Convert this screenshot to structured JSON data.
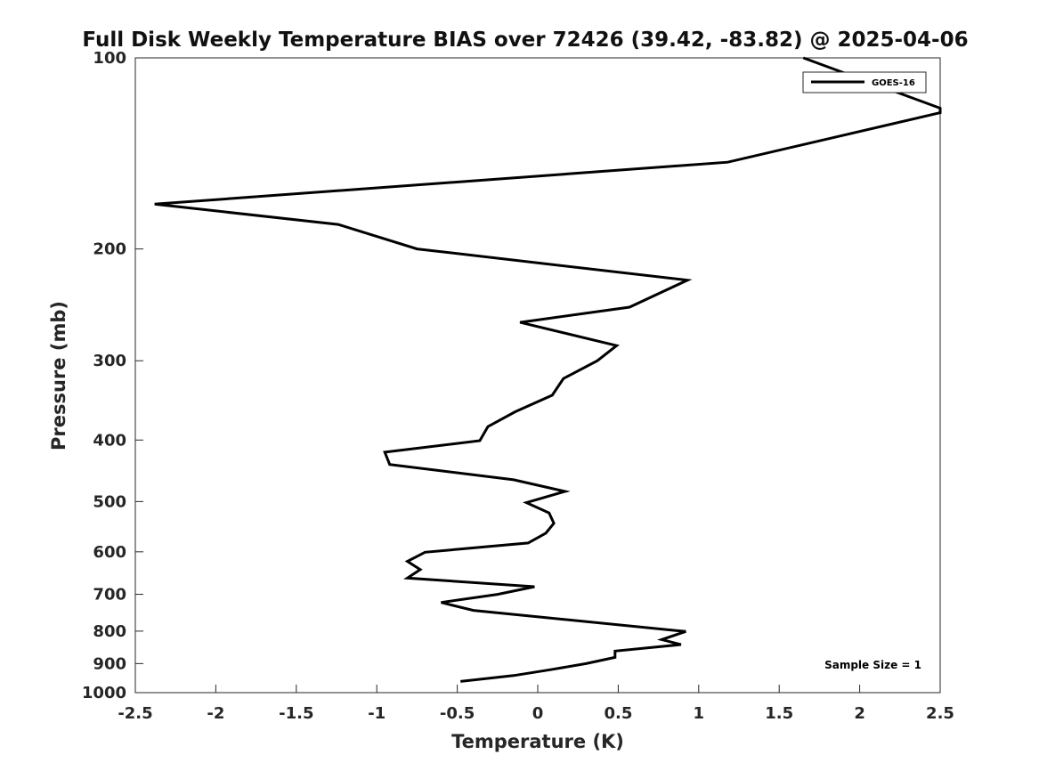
{
  "chart_data": {
    "type": "line",
    "title": "Full Disk Weekly Temperature BIAS over 72426 (39.42, -83.82) @ 2025-04-06",
    "xlabel": "Temperature (K)",
    "ylabel": "Pressure (mb)",
    "xlim": [
      -2.5,
      2.5
    ],
    "ylim": [
      100,
      1000
    ],
    "yscale": "log",
    "yreversed": true,
    "xticks": [
      -2.5,
      -2,
      -1.5,
      -1,
      -0.5,
      0,
      0.5,
      1,
      1.5,
      2,
      2.5
    ],
    "xtick_labels": [
      "-2.5",
      "-2",
      "-1.5",
      "-1",
      "-0.5",
      "0",
      "0.5",
      "1",
      "1.5",
      "2",
      "2.5"
    ],
    "yticks": [
      100,
      200,
      300,
      400,
      500,
      600,
      700,
      800,
      900,
      1000
    ],
    "ytick_labels": [
      "100",
      "200",
      "300",
      "400",
      "500",
      "600",
      "700",
      "800",
      "900",
      "1000"
    ],
    "legend": {
      "location": "top-right",
      "entries": [
        "GOES-16"
      ]
    },
    "annotation": "Sample Size = 1",
    "series": [
      {
        "name": "GOES-16",
        "color": "#000000",
        "points": [
          {
            "t": 1.65,
            "p": 100
          },
          {
            "t": 2.5,
            "p": 120
          },
          {
            "t": 2.5,
            "p": 122
          },
          {
            "t": 1.18,
            "p": 146
          },
          {
            "t": -2.38,
            "p": 170
          },
          {
            "t": -1.24,
            "p": 183
          },
          {
            "t": -0.75,
            "p": 200
          },
          {
            "t": 0.93,
            "p": 224
          },
          {
            "t": 0.57,
            "p": 247
          },
          {
            "t": -0.11,
            "p": 261
          },
          {
            "t": 0.49,
            "p": 284
          },
          {
            "t": 0.37,
            "p": 300
          },
          {
            "t": 0.16,
            "p": 320
          },
          {
            "t": 0.09,
            "p": 340
          },
          {
            "t": -0.14,
            "p": 361
          },
          {
            "t": -0.31,
            "p": 381
          },
          {
            "t": -0.36,
            "p": 401
          },
          {
            "t": -0.95,
            "p": 418
          },
          {
            "t": -0.92,
            "p": 437
          },
          {
            "t": -0.15,
            "p": 462
          },
          {
            "t": 0.17,
            "p": 482
          },
          {
            "t": -0.07,
            "p": 502
          },
          {
            "t": 0.07,
            "p": 521
          },
          {
            "t": 0.1,
            "p": 541
          },
          {
            "t": 0.05,
            "p": 561
          },
          {
            "t": -0.06,
            "p": 581
          },
          {
            "t": -0.7,
            "p": 601
          },
          {
            "t": -0.81,
            "p": 621
          },
          {
            "t": -0.73,
            "p": 640
          },
          {
            "t": -0.81,
            "p": 660
          },
          {
            "t": -0.02,
            "p": 681
          },
          {
            "t": -0.25,
            "p": 700
          },
          {
            "t": -0.6,
            "p": 721
          },
          {
            "t": -0.4,
            "p": 742
          },
          {
            "t": 0.92,
            "p": 801
          },
          {
            "t": 0.77,
            "p": 825
          },
          {
            "t": 0.89,
            "p": 840
          },
          {
            "t": 0.48,
            "p": 860
          },
          {
            "t": 0.48,
            "p": 880
          },
          {
            "t": 0.3,
            "p": 900
          },
          {
            "t": 0.08,
            "p": 920
          },
          {
            "t": -0.15,
            "p": 940
          },
          {
            "t": -0.48,
            "p": 960
          }
        ]
      }
    ]
  }
}
